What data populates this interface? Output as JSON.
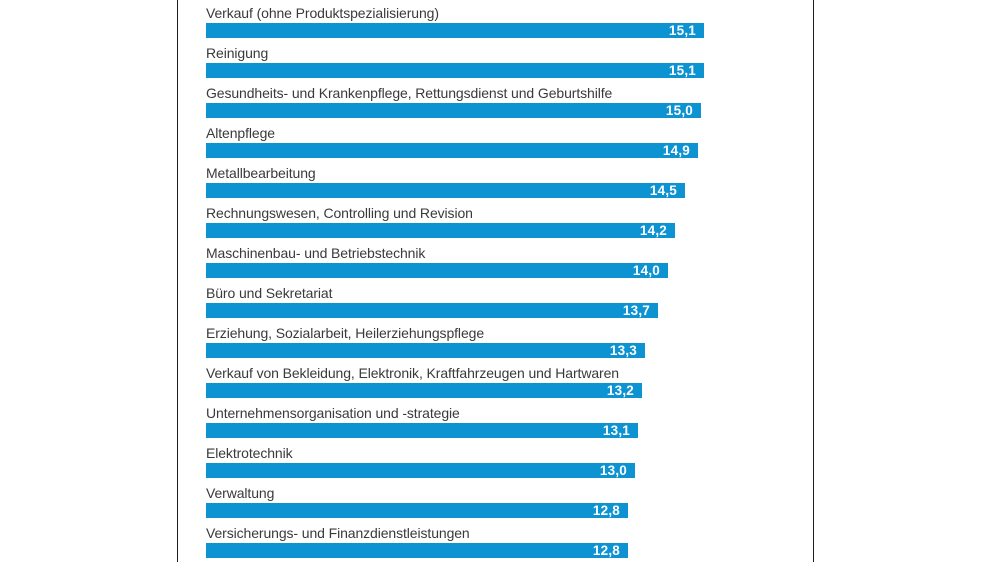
{
  "chart_data": {
    "type": "bar",
    "orientation": "horizontal",
    "categories": [
      "Verkauf (ohne Produktspezialisierung)",
      "Reinigung",
      "Gesundheits- und Krankenpflege, Rettungsdienst und Geburtshilfe",
      "Altenpflege",
      "Metallbearbeitung",
      "Rechnungswesen, Controlling und Revision",
      "Maschinenbau- und Betriebstechnik",
      "Büro und Sekretariat",
      "Erziehung, Sozialarbeit, Heilerziehungspflege",
      "Verkauf von Bekleidung, Elektronik, Kraftfahrzeugen und Hartwaren",
      "Unternehmensorganisation und -strategie",
      "Elektrotechnik",
      "Verwaltung",
      "Versicherungs- und Finanzdienstleistungen"
    ],
    "values": [
      15.1,
      15.1,
      15.0,
      14.9,
      14.5,
      14.2,
      14.0,
      13.7,
      13.3,
      13.2,
      13.1,
      13.0,
      12.8,
      12.8
    ],
    "value_labels": [
      "15,1",
      "15,1",
      "15,0",
      "14,9",
      "14,5",
      "14,2",
      "14,0",
      "13,7",
      "13,3",
      "13,2",
      "13,1",
      "13,0",
      "12,8",
      "12,8"
    ],
    "decimal_separator": ",",
    "value_label_position": "inside-end",
    "grid": false,
    "legend": false,
    "bar_color": "#0e93d2",
    "label_color": "#3a3a39",
    "value_text_color": "#ffffff",
    "panel_border_color": "#1c1c1c"
  }
}
